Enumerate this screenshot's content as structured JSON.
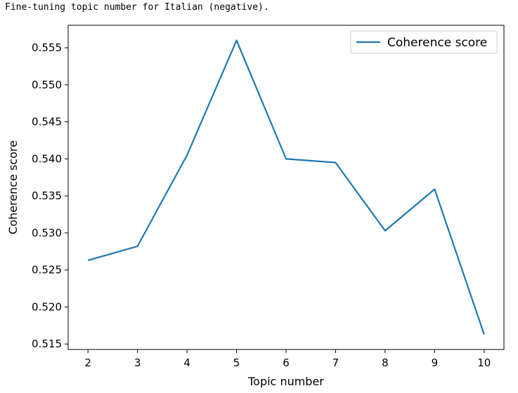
{
  "output": {
    "stdout": "Fine-tuning topic number for Italian (negative)."
  },
  "chart_data": {
    "type": "line",
    "title": "",
    "xlabel": "Topic number",
    "ylabel": "Coherence score",
    "x": [
      2,
      3,
      4,
      5,
      6,
      7,
      8,
      9,
      10
    ],
    "series": [
      {
        "name": "Coherence score",
        "values": [
          0.5263,
          0.5282,
          0.5405,
          0.556,
          0.54,
          0.5395,
          0.5303,
          0.5359,
          0.5163
        ],
        "color": "#1f77b4"
      }
    ],
    "xticks": [
      "2",
      "3",
      "4",
      "5",
      "6",
      "7",
      "8",
      "9",
      "10"
    ],
    "xtick_values": [
      2,
      3,
      4,
      5,
      6,
      7,
      8,
      9,
      10
    ],
    "yticks": [
      "0.515",
      "0.520",
      "0.525",
      "0.530",
      "0.535",
      "0.540",
      "0.545",
      "0.550",
      "0.555"
    ],
    "ytick_values": [
      0.515,
      0.52,
      0.525,
      0.53,
      0.535,
      0.54,
      0.545,
      0.55,
      0.555
    ],
    "xlim": [
      1.6,
      10.4
    ],
    "ylim": [
      0.51426,
      0.55804
    ],
    "grid": false,
    "legend_position": "upper right"
  }
}
